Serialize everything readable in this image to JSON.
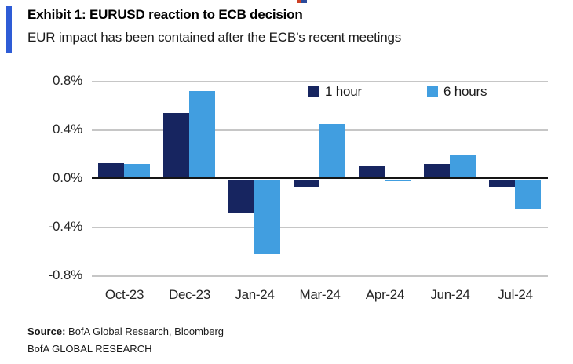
{
  "header": {
    "exhibit_title": "Exhibit 1: EURUSD reaction to ECB decision",
    "subtitle": "EUR impact has been contained after the ECB’s recent meetings"
  },
  "chart_data": {
    "type": "bar",
    "title": "EURUSD reaction to ECB decision",
    "categories": [
      "Oct-23",
      "Dec-23",
      "Jan-24",
      "Mar-24",
      "Apr-24",
      "Jun-24",
      "Jul-24"
    ],
    "series": [
      {
        "name": "1 hour",
        "color": "#172560",
        "values": [
          0.13,
          0.54,
          -0.27,
          -0.06,
          0.1,
          0.12,
          -0.06
        ]
      },
      {
        "name": "6 hours",
        "color": "#419EE0",
        "values": [
          0.12,
          0.72,
          -0.61,
          0.45,
          -0.01,
          0.19,
          -0.24
        ]
      }
    ],
    "unit": "%",
    "ylim": [
      -0.8,
      0.8
    ],
    "y_ticks": [
      "0.8%",
      "0.4%",
      "0.0%",
      "-0.4%",
      "-0.8%"
    ],
    "y_tick_values": [
      0.8,
      0.4,
      0.0,
      -0.4,
      -0.8
    ],
    "grid": "horizontal",
    "legend_position": "top-inside"
  },
  "footer": {
    "source_label": "Source:",
    "source_text": " BofA Global Research, Bloomberg",
    "brand_line": "BofA GLOBAL RESEARCH"
  },
  "colors": {
    "accent_bar": "#2E5CD6",
    "series_1hour": "#172560",
    "series_6hours": "#419EE0",
    "gridline": "#C6C6C6",
    "zero_axis": "#151515"
  }
}
